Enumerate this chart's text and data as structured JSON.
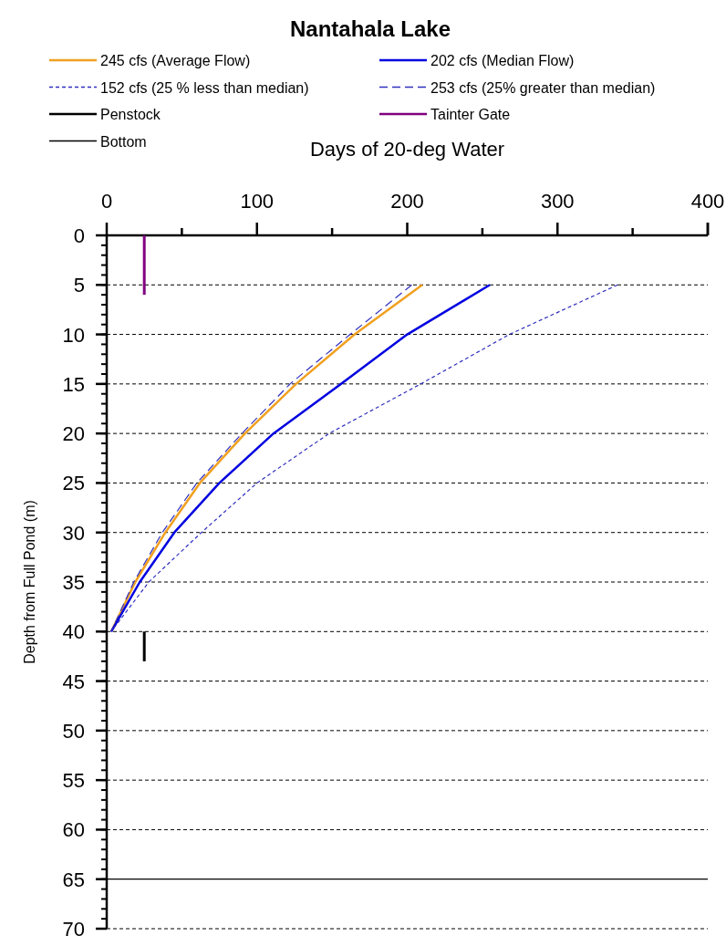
{
  "chart_data": {
    "type": "line",
    "title": "Nantahala Lake",
    "xlabel": "Days of 20-deg Water",
    "ylabel": "Depth from Full Pond (m)",
    "xlim": [
      0,
      400
    ],
    "xticks": [
      0,
      {
        "value": 50,
        "label": null
      },
      100,
      {
        "value": 150,
        "label": null
      },
      200,
      {
        "value": 250,
        "label": null
      },
      300,
      {
        "value": 350,
        "label": null
      },
      400
    ],
    "ylim": [
      70,
      0
    ],
    "yticks": [
      0,
      5,
      10,
      15,
      20,
      25,
      30,
      35,
      40,
      45,
      50,
      55,
      60,
      65,
      70
    ],
    "grid": "y",
    "legend": "top",
    "series": [
      {
        "name": "245 cfs (Average Flow)",
        "color": "#f0a020",
        "line_style": "solid",
        "x": [
          210,
          165,
          126,
          92,
          62,
          39,
          19,
          3
        ],
        "values": [
          5,
          10,
          15,
          20,
          25,
          30,
          35,
          40
        ]
      },
      {
        "name": "202 cfs (Median Flow)",
        "color": "#0000e0",
        "line_style": "solid",
        "x": [
          255,
          200,
          156,
          111,
          75,
          45,
          22,
          3
        ],
        "values": [
          5,
          10,
          15,
          20,
          25,
          30,
          35,
          40
        ]
      },
      {
        "name": "152 cfs (25 % less than median)",
        "color": "#3030c0",
        "line_style": "dotted",
        "x": [
          340,
          268,
          209,
          148,
          100,
          63,
          28,
          3
        ],
        "values": [
          5,
          10,
          15,
          20,
          25,
          30,
          35,
          40
        ]
      },
      {
        "name": "253 cfs (25% greater than median)",
        "color": "#3030c0",
        "line_style": "dashed",
        "x": [
          203,
          162,
          122,
          90,
          60,
          37,
          18,
          3
        ],
        "values": [
          5,
          10,
          15,
          20,
          25,
          30,
          35,
          40
        ]
      },
      {
        "name": "Penstock",
        "color": "#000000",
        "line_style": "solid",
        "x": [
          25,
          25
        ],
        "values": [
          40,
          43
        ]
      },
      {
        "name": "Tainter Gate",
        "color": "#800080",
        "line_style": "solid",
        "x": [
          25,
          25
        ],
        "values": [
          0,
          6
        ]
      },
      {
        "name": "Bottom",
        "color": "#000000",
        "line_style": "solid",
        "x": [
          0,
          400
        ],
        "values": [
          65,
          65
        ]
      }
    ]
  }
}
